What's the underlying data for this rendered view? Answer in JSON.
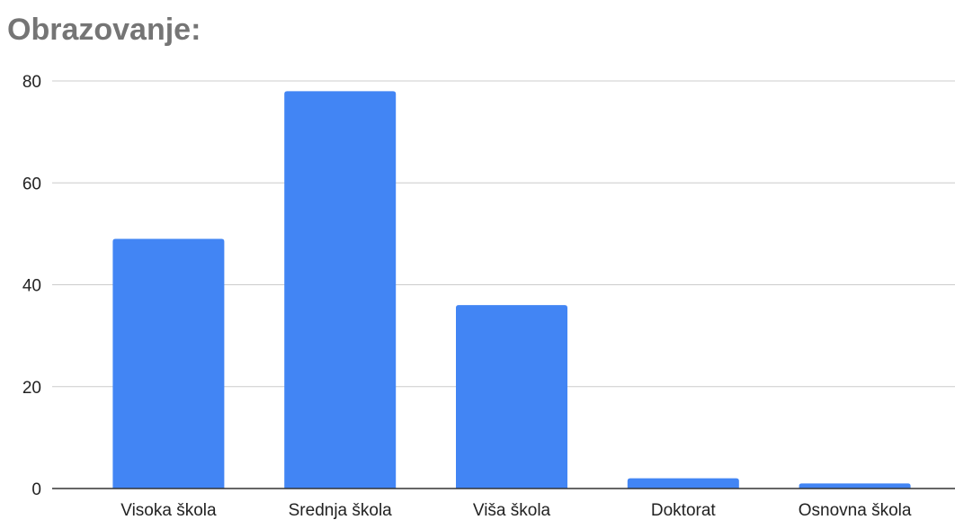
{
  "chart_data": {
    "type": "bar",
    "title": "Obrazovanje:",
    "xlabel": "",
    "ylabel": "",
    "categories": [
      "Visoka škola",
      "Srednja škola",
      "Viša škola",
      "Doktorat",
      "Osnovna škola"
    ],
    "values": [
      49,
      78,
      36,
      2,
      1
    ],
    "ylim": [
      0,
      80
    ],
    "yticks": [
      0,
      20,
      40,
      60,
      80
    ],
    "grid": true,
    "legend": "none",
    "bar_color": "#4285f4",
    "grid_color": "#cccccc",
    "axis_color": "#333333"
  }
}
